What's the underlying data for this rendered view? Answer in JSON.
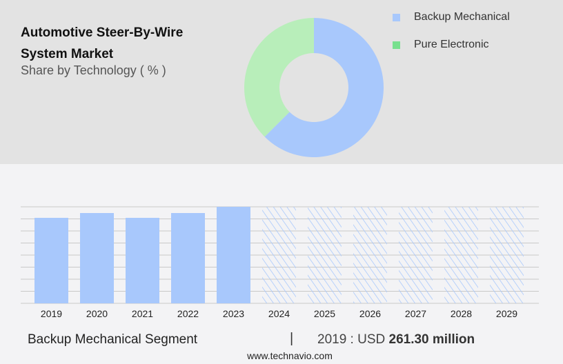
{
  "title": "Automotive Steer-By-Wire System Market",
  "subtitle": "Share by Technology ( % )",
  "chart_data": [
    {
      "type": "pie",
      "variant": "donut",
      "title": "Automotive Steer-By-Wire System Market",
      "subtitle": "Share by Technology ( % )",
      "categories": [
        "Backup Mechanical",
        "Pure Electronic"
      ],
      "values": [
        62.5,
        37.5
      ],
      "colors": [
        "#a8c8fc",
        "#b8eeba"
      ],
      "legend_colors": [
        "#a8c8fc",
        "#78e08e"
      ],
      "legend_placement": "top-right"
    },
    {
      "type": "bar",
      "categories": [
        "2019",
        "2020",
        "2021",
        "2022",
        "2023",
        "2024",
        "2025",
        "2026",
        "2027",
        "2028",
        "2029"
      ],
      "values": [
        261.3,
        276,
        261.3,
        276,
        295,
        null,
        null,
        null,
        null,
        null,
        null
      ],
      "forecast": [
        false,
        false,
        false,
        false,
        false,
        true,
        true,
        true,
        true,
        true,
        true
      ],
      "unit": "USD million",
      "grid": true,
      "color": "#a8c8fc",
      "forecast_style": "hatched"
    }
  ],
  "footer": {
    "segment": "Backup Mechanical Segment",
    "separator": "|",
    "value_prefix": "2019 : USD",
    "value": "261.30 million",
    "source": "www.technavio.com"
  }
}
